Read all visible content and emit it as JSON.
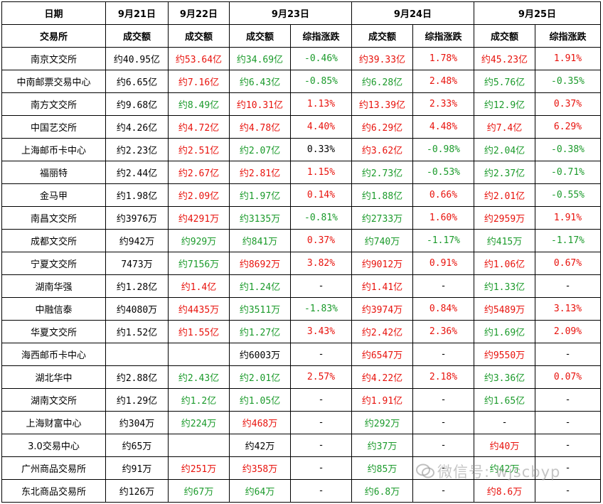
{
  "header": {
    "date_label": "日期",
    "dates": [
      "9月21日",
      "9月22日",
      "9月23日",
      "9月24日",
      "9月25日"
    ],
    "exchange_label": "交易所",
    "turnover_label": "成交额",
    "index_change_label": "综指涨跌"
  },
  "colors": {
    "red": "#e8120c",
    "green": "#1a9a2a",
    "black": "#000000"
  },
  "rows": [
    {
      "name": "南京文交所",
      "cells": [
        [
          "约40.95亿",
          "black"
        ],
        [
          "约53.64亿",
          "red"
        ],
        [
          "约34.69亿",
          "green"
        ],
        [
          "-0.46%",
          "green"
        ],
        [
          "约39.33亿",
          "red"
        ],
        [
          "1.78%",
          "red"
        ],
        [
          "约45.23亿",
          "red"
        ],
        [
          "1.91%",
          "red"
        ]
      ]
    },
    {
      "name": "中南邮票交易中心",
      "cells": [
        [
          "约6.65亿",
          "black"
        ],
        [
          "约7.16亿",
          "red"
        ],
        [
          "约6.43亿",
          "green"
        ],
        [
          "-0.85%",
          "green"
        ],
        [
          "约6.28亿",
          "green"
        ],
        [
          "2.48%",
          "red"
        ],
        [
          "约5.76亿",
          "green"
        ],
        [
          "-0.35%",
          "green"
        ]
      ]
    },
    {
      "name": "南方文交所",
      "cells": [
        [
          "约9.68亿",
          "black"
        ],
        [
          "约8.49亿",
          "green"
        ],
        [
          "约10.31亿",
          "red"
        ],
        [
          "1.13%",
          "red"
        ],
        [
          "约13.39亿",
          "red"
        ],
        [
          "2.33%",
          "red"
        ],
        [
          "约12.9亿",
          "green"
        ],
        [
          "0.37%",
          "red"
        ]
      ]
    },
    {
      "name": "中国艺交所",
      "cells": [
        [
          "约4.26亿",
          "black"
        ],
        [
          "约4.72亿",
          "red"
        ],
        [
          "约4.78亿",
          "red"
        ],
        [
          "4.40%",
          "red"
        ],
        [
          "约6.29亿",
          "red"
        ],
        [
          "4.48%",
          "red"
        ],
        [
          "约7.4亿",
          "red"
        ],
        [
          "6.29%",
          "red"
        ]
      ]
    },
    {
      "name": "上海邮币卡中心",
      "cells": [
        [
          "约2.23亿",
          "black"
        ],
        [
          "约2.51亿",
          "red"
        ],
        [
          "约2.07亿",
          "green"
        ],
        [
          "0.33%",
          "black"
        ],
        [
          "约3.62亿",
          "red"
        ],
        [
          "-0.98%",
          "green"
        ],
        [
          "约2.04亿",
          "green"
        ],
        [
          "-0.38%",
          "green"
        ]
      ]
    },
    {
      "name": "福丽特",
      "cells": [
        [
          "约2.44亿",
          "black"
        ],
        [
          "约2.67亿",
          "red"
        ],
        [
          "约2.81亿",
          "red"
        ],
        [
          "1.15%",
          "red"
        ],
        [
          "约2.73亿",
          "green"
        ],
        [
          "-0.53%",
          "green"
        ],
        [
          "约2.37亿",
          "green"
        ],
        [
          "-0.71%",
          "green"
        ]
      ]
    },
    {
      "name": "金马甲",
      "cells": [
        [
          "约1.98亿",
          "black"
        ],
        [
          "约2.09亿",
          "red"
        ],
        [
          "约1.97亿",
          "green"
        ],
        [
          "0.14%",
          "red"
        ],
        [
          "约1.88亿",
          "green"
        ],
        [
          "0.66%",
          "red"
        ],
        [
          "约2.01亿",
          "red"
        ],
        [
          "-0.55%",
          "green"
        ]
      ]
    },
    {
      "name": "南昌文交所",
      "cells": [
        [
          "约3976万",
          "black"
        ],
        [
          "约4291万",
          "red"
        ],
        [
          "约3135万",
          "green"
        ],
        [
          "-0.81%",
          "green"
        ],
        [
          "约2733万",
          "green"
        ],
        [
          "1.60%",
          "red"
        ],
        [
          "约2959万",
          "red"
        ],
        [
          "1.91%",
          "red"
        ]
      ]
    },
    {
      "name": "成都文交所",
      "cells": [
        [
          "约942万",
          "black"
        ],
        [
          "约929万",
          "green"
        ],
        [
          "约841万",
          "green"
        ],
        [
          "0.37%",
          "red"
        ],
        [
          "约740万",
          "green"
        ],
        [
          "-1.17%",
          "green"
        ],
        [
          "约415万",
          "green"
        ],
        [
          "-1.17%",
          "green"
        ]
      ]
    },
    {
      "name": "宁夏文交所",
      "cells": [
        [
          "7473万",
          "black"
        ],
        [
          "约7156万",
          "green"
        ],
        [
          "约8692万",
          "red"
        ],
        [
          "3.82%",
          "red"
        ],
        [
          "约9012万",
          "red"
        ],
        [
          "0.91%",
          "red"
        ],
        [
          "约1.06亿",
          "red"
        ],
        [
          "0.67%",
          "red"
        ]
      ]
    },
    {
      "name": "湖南华强",
      "cells": [
        [
          "约1.28亿",
          "black"
        ],
        [
          "约1.4亿",
          "red"
        ],
        [
          "约1.24亿",
          "green"
        ],
        [
          "-",
          "black"
        ],
        [
          "约1.41亿",
          "red"
        ],
        [
          "-",
          "black"
        ],
        [
          "约1.33亿",
          "green"
        ],
        [
          "-",
          "black"
        ]
      ]
    },
    {
      "name": "中融信泰",
      "cells": [
        [
          "约4080万",
          "black"
        ],
        [
          "约4435万",
          "red"
        ],
        [
          "约3511万",
          "green"
        ],
        [
          "-1.83%",
          "green"
        ],
        [
          "约3974万",
          "red"
        ],
        [
          "0.84%",
          "red"
        ],
        [
          "约5489万",
          "red"
        ],
        [
          "3.13%",
          "red"
        ]
      ]
    },
    {
      "name": "华夏文交所",
      "cells": [
        [
          "约1.52亿",
          "black"
        ],
        [
          "约1.55亿",
          "red"
        ],
        [
          "约1.27亿",
          "green"
        ],
        [
          "3.43%",
          "red"
        ],
        [
          "约2.42亿",
          "red"
        ],
        [
          "2.36%",
          "red"
        ],
        [
          "约1.69亿",
          "green"
        ],
        [
          "2.09%",
          "red"
        ]
      ]
    },
    {
      "name": "海西邮币卡中心",
      "cells": [
        [
          "",
          "black"
        ],
        [
          "",
          "black"
        ],
        [
          "约6003万",
          "black"
        ],
        [
          "-",
          "black"
        ],
        [
          "约6547万",
          "red"
        ],
        [
          "-",
          "black"
        ],
        [
          "约9550万",
          "red"
        ],
        [
          "-",
          "black"
        ]
      ]
    },
    {
      "name": "湖北华中",
      "cells": [
        [
          "约2.88亿",
          "black"
        ],
        [
          "约2.43亿",
          "green"
        ],
        [
          "约2.01亿",
          "green"
        ],
        [
          "2.57%",
          "red"
        ],
        [
          "约4.22亿",
          "red"
        ],
        [
          "2.18%",
          "red"
        ],
        [
          "约3.36亿",
          "green"
        ],
        [
          "0.07%",
          "red"
        ]
      ]
    },
    {
      "name": "湖南文交所",
      "cells": [
        [
          "约1.29亿",
          "black"
        ],
        [
          "约1.2亿",
          "green"
        ],
        [
          "约1.05亿",
          "green"
        ],
        [
          "-",
          "black"
        ],
        [
          "约1.91亿",
          "red"
        ],
        [
          "-",
          "black"
        ],
        [
          "约1.65亿",
          "green"
        ],
        [
          "-",
          "black"
        ]
      ]
    },
    {
      "name": "上海财富中心",
      "cells": [
        [
          "约304万",
          "black"
        ],
        [
          "约224万",
          "green"
        ],
        [
          "约468万",
          "red"
        ],
        [
          "-",
          "black"
        ],
        [
          "约292万",
          "green"
        ],
        [
          "-",
          "black"
        ],
        [
          "-",
          "black"
        ],
        [
          "-",
          "black"
        ]
      ]
    },
    {
      "name": "3.0交易中心",
      "cells": [
        [
          "约65万",
          "black"
        ],
        [
          "",
          "black"
        ],
        [
          "约42万",
          "black"
        ],
        [
          "-",
          "black"
        ],
        [
          "约37万",
          "green"
        ],
        [
          "-",
          "black"
        ],
        [
          "约40万",
          "red"
        ],
        [
          "-",
          "black"
        ]
      ]
    },
    {
      "name": "广州商品交易所",
      "cells": [
        [
          "约91万",
          "black"
        ],
        [
          "约251万",
          "red"
        ],
        [
          "约358万",
          "red"
        ],
        [
          "-",
          "black"
        ],
        [
          "约85万",
          "green"
        ],
        [
          "-",
          "black"
        ],
        [
          "约42万",
          "green"
        ],
        [
          "-",
          "black"
        ]
      ]
    },
    {
      "name": "东北商品交易所",
      "cells": [
        [
          "约126万",
          "black"
        ],
        [
          "约67万",
          "green"
        ],
        [
          "约64万",
          "green"
        ],
        [
          "-",
          "black"
        ],
        [
          "约6.8万",
          "green"
        ],
        [
          "-",
          "black"
        ],
        [
          "约8.6万",
          "red"
        ],
        [
          "-",
          "black"
        ]
      ]
    }
  ],
  "watermark": {
    "text": "微信号: wjscbyp",
    "icon": "wechat-icon"
  }
}
